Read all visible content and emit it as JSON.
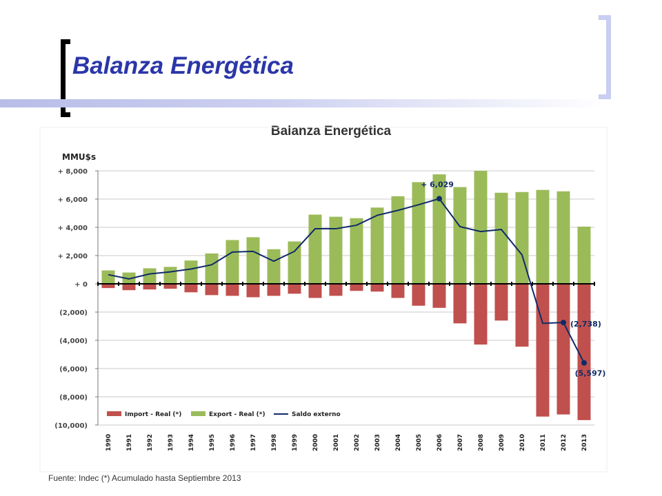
{
  "slide": {
    "title": "Balanza Energética",
    "footer": "Fuente: Indec  (*) Acumulado hasta Septiembre 2013"
  },
  "colors": {
    "title": "#2b36a8",
    "bracket_left": "#000000",
    "bracket_right": "#c8cdf2",
    "import": "#c0504d",
    "export": "#9bbb59",
    "saldo": "#0f2a68"
  },
  "chart_data": {
    "type": "bar",
    "title": "Balanza Energética",
    "ylabel": "MMU$s",
    "ylim": [
      -10000,
      8000
    ],
    "yticks": [
      8000,
      6000,
      4000,
      2000,
      0,
      -2000,
      -4000,
      -6000,
      -8000,
      -10000
    ],
    "ytick_labels": [
      "+ 8,000",
      "+ 6,000",
      "+ 4,000",
      "+ 2,000",
      "+ 0",
      "(2,000)",
      "(4,000)",
      "(6,000)",
      "(8,000)",
      "(10,000)"
    ],
    "grid": true,
    "legend_position": "bottom-left",
    "categories": [
      "1990",
      "1991",
      "1992",
      "1993",
      "1994",
      "1995",
      "1996",
      "1997",
      "1998",
      "1999",
      "2000",
      "2001",
      "2002",
      "2003",
      "2004",
      "2005",
      "2006",
      "2007",
      "2008",
      "2009",
      "2010",
      "2011",
      "2012",
      "2013"
    ],
    "series": [
      {
        "name": "Import - Real (*)",
        "kind": "bar",
        "values": [
          -300,
          -450,
          -400,
          -350,
          -600,
          -800,
          -850,
          -950,
          -850,
          -700,
          -1000,
          -850,
          -500,
          -550,
          -1000,
          -1550,
          -1700,
          -2800,
          -4300,
          -2600,
          -4450,
          -9400,
          -9250,
          -9650
        ]
      },
      {
        "name": "Export - Real (*)",
        "kind": "bar",
        "values": [
          950,
          800,
          1100,
          1200,
          1650,
          2150,
          3100,
          3300,
          2450,
          3000,
          4900,
          4750,
          4650,
          5400,
          6200,
          7200,
          7750,
          6850,
          8000,
          6450,
          6500,
          6650,
          6550,
          4050
        ]
      },
      {
        "name": "Saldo externo",
        "kind": "line",
        "values": [
          650,
          350,
          700,
          850,
          1050,
          1350,
          2250,
          2300,
          1600,
          2300,
          3900,
          3900,
          4150,
          4850,
          5200,
          5600,
          6029,
          4050,
          3700,
          3850,
          2050,
          -2800,
          -2738,
          -5597
        ]
      }
    ],
    "annotations": [
      {
        "category": "2006",
        "value": 6029,
        "label": "+ 6,029"
      },
      {
        "category": "2012",
        "value": -2738,
        "label": "(2,738)"
      },
      {
        "category": "2013",
        "value": -5597,
        "label": "(5,597)"
      }
    ]
  }
}
